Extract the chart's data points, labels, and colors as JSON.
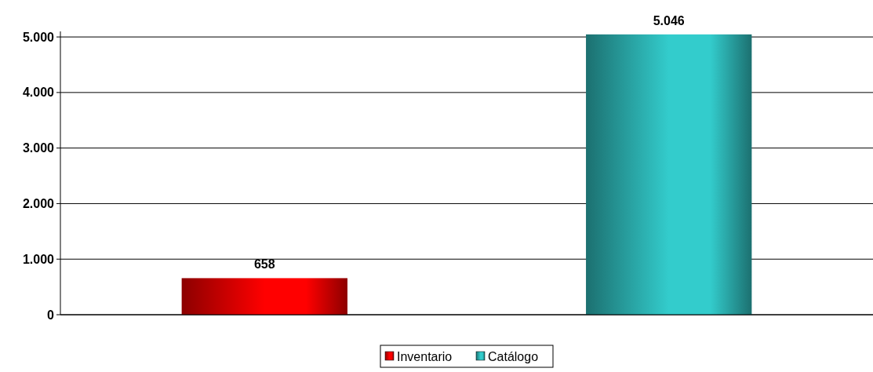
{
  "chart_data": {
    "type": "bar",
    "categories": [
      null
    ],
    "series": [
      {
        "name": "Inventario",
        "color": "#ff0000",
        "values": [
          658
        ],
        "value_labels": [
          "658"
        ]
      },
      {
        "name": "Catálogo",
        "color": "#33cccc",
        "values": [
          5046
        ],
        "value_labels": [
          "5.046"
        ]
      }
    ],
    "ylim": [
      0,
      5100
    ],
    "yticks": [
      0,
      {
        "value": 1000,
        "label": "1.000"
      },
      {
        "value": 2000,
        "label": "2.000"
      },
      {
        "value": 3000,
        "label": "3.000"
      },
      {
        "value": 4000,
        "label": "4.000"
      },
      {
        "value": 5000,
        "label": "5.000"
      }
    ],
    "grid": "y",
    "legend": "bottom"
  }
}
